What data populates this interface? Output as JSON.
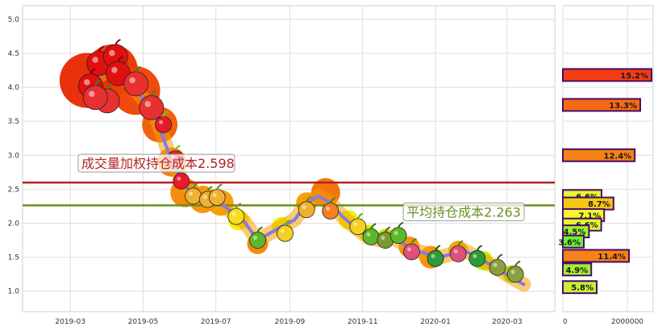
{
  "chart_data": {
    "type": "line",
    "title": "",
    "xlabel": "",
    "ylabel": "",
    "ylim": [
      0.7,
      5.2
    ],
    "yticks": [
      "1.0",
      "1.5",
      "2.0",
      "2.5",
      "3.0",
      "3.5",
      "4.0",
      "4.5",
      "5.0"
    ],
    "xticks": [
      "2019-03",
      "2019-05",
      "2019-07",
      "2019-09",
      "2019-11",
      "2020-01",
      "2020-03"
    ],
    "xlim": [
      "2019-01-20",
      "2020-04-10"
    ],
    "grid": true,
    "price_series": [
      {
        "date": "2019-03-20",
        "value": 4.1
      },
      {
        "date": "2019-04-01",
        "value": 4.25
      },
      {
        "date": "2019-04-15",
        "value": 4.15
      },
      {
        "date": "2019-04-25",
        "value": 3.95
      },
      {
        "date": "2019-05-05",
        "value": 3.75
      },
      {
        "date": "2019-05-12",
        "value": 3.55
      },
      {
        "date": "2019-05-20",
        "value": 3.15
      },
      {
        "date": "2019-05-27",
        "value": 2.85
      },
      {
        "date": "2019-06-05",
        "value": 2.55
      },
      {
        "date": "2019-06-15",
        "value": 2.4
      },
      {
        "date": "2019-06-25",
        "value": 2.35
      },
      {
        "date": "2019-07-05",
        "value": 2.3
      },
      {
        "date": "2019-07-15",
        "value": 2.15
      },
      {
        "date": "2019-07-25",
        "value": 2.02
      },
      {
        "date": "2019-08-05",
        "value": 1.75
      },
      {
        "date": "2019-08-15",
        "value": 1.85
      },
      {
        "date": "2019-08-25",
        "value": 1.95
      },
      {
        "date": "2019-09-05",
        "value": 2.05
      },
      {
        "date": "2019-09-15",
        "value": 2.3
      },
      {
        "date": "2019-09-25",
        "value": 2.4
      },
      {
        "date": "2019-10-05",
        "value": 2.3
      },
      {
        "date": "2019-10-15",
        "value": 2.1
      },
      {
        "date": "2019-10-25",
        "value": 1.95
      },
      {
        "date": "2019-11-05",
        "value": 1.8
      },
      {
        "date": "2019-11-15",
        "value": 1.75
      },
      {
        "date": "2019-11-25",
        "value": 1.8
      },
      {
        "date": "2019-12-05",
        "value": 1.7
      },
      {
        "date": "2019-12-15",
        "value": 1.6
      },
      {
        "date": "2019-12-25",
        "value": 1.55
      },
      {
        "date": "2020-01-05",
        "value": 1.5
      },
      {
        "date": "2020-01-15",
        "value": 1.55
      },
      {
        "date": "2020-01-25",
        "value": 1.6
      },
      {
        "date": "2020-02-05",
        "value": 1.5
      },
      {
        "date": "2020-02-15",
        "value": 1.4
      },
      {
        "date": "2020-02-25",
        "value": 1.3
      },
      {
        "date": "2020-03-05",
        "value": 1.2
      },
      {
        "date": "2020-03-15",
        "value": 1.1
      }
    ],
    "cost_bubbles": [
      {
        "date": "2019-03-15",
        "value": 4.1,
        "size": 34,
        "color": "#e82600"
      },
      {
        "date": "2019-04-05",
        "value": 4.25,
        "size": 32,
        "color": "#e83300"
      },
      {
        "date": "2019-04-25",
        "value": 3.95,
        "size": 30,
        "color": "#f04000"
      },
      {
        "date": "2019-05-15",
        "value": 3.45,
        "size": 22,
        "color": "#f05a00"
      },
      {
        "date": "2019-05-25",
        "value": 2.9,
        "size": 18,
        "color": "#f57700"
      },
      {
        "date": "2019-06-05",
        "value": 2.45,
        "size": 18,
        "color": "#f58500"
      },
      {
        "date": "2019-06-20",
        "value": 2.35,
        "size": 17,
        "color": "#f79000"
      },
      {
        "date": "2019-07-05",
        "value": 2.3,
        "size": 16,
        "color": "#f79a00"
      },
      {
        "date": "2019-07-20",
        "value": 2.05,
        "size": 13,
        "color": "#f5e800"
      },
      {
        "date": "2019-08-05",
        "value": 1.7,
        "size": 13,
        "color": "#f58200"
      },
      {
        "date": "2019-08-25",
        "value": 1.95,
        "size": 12,
        "color": "#f0f000"
      },
      {
        "date": "2019-09-15",
        "value": 2.3,
        "size": 13,
        "color": "#f79a00"
      },
      {
        "date": "2019-10-01",
        "value": 2.45,
        "size": 18,
        "color": "#f07000"
      },
      {
        "date": "2019-10-20",
        "value": 2.05,
        "size": 12,
        "color": "#e8f000"
      },
      {
        "date": "2019-11-05",
        "value": 1.85,
        "size": 11,
        "color": "#c8f000"
      },
      {
        "date": "2019-11-20",
        "value": 1.8,
        "size": 10,
        "color": "#b0f000"
      },
      {
        "date": "2019-12-10",
        "value": 1.65,
        "size": 13,
        "color": "#f58a00"
      },
      {
        "date": "2019-12-28",
        "value": 1.5,
        "size": 14,
        "color": "#f58a00"
      },
      {
        "date": "2020-01-20",
        "value": 1.6,
        "size": 12,
        "color": "#f5a000"
      },
      {
        "date": "2020-02-10",
        "value": 1.45,
        "size": 12,
        "color": "#b8f000"
      },
      {
        "date": "2020-03-05",
        "value": 1.25,
        "size": 11,
        "color": "#80f000"
      }
    ],
    "horizontal_lines": [
      {
        "name": "volume_weighted_cost",
        "value": 2.598,
        "color": "#b22222",
        "label": "成交量加权持仓成本2.598"
      },
      {
        "name": "average_cost",
        "value": 2.263,
        "color": "#6b8e23",
        "label": "平均持仓成本2.263"
      }
    ],
    "side_panel": {
      "type": "bar",
      "xlim": [
        0,
        2800000
      ],
      "xticks": [
        "0",
        "2000000"
      ],
      "bars": [
        {
          "price": 4.18,
          "value": 2750000,
          "label": "15.2%",
          "color": "#f53c14"
        },
        {
          "price": 3.74,
          "value": 2400000,
          "label": "13.3%",
          "color": "#f56a14"
        },
        {
          "price": 3.0,
          "value": 2230000,
          "label": "12.4%",
          "color": "#f58214"
        },
        {
          "price": 2.4,
          "value": 1200000,
          "label": "6.6%",
          "color": "#e6f532"
        },
        {
          "price": 2.29,
          "value": 1570000,
          "label": "8.7%",
          "color": "#f5c814"
        },
        {
          "price": 2.12,
          "value": 1280000,
          "label": "7.1%",
          "color": "#f5f532"
        },
        {
          "price": 1.98,
          "value": 1190000,
          "label": "6.6%",
          "color": "#e1f532"
        },
        {
          "price": 1.88,
          "value": 810000,
          "label": "4.5%",
          "color": "#a0f032"
        },
        {
          "price": 1.73,
          "value": 650000,
          "label": "3.6%",
          "color": "#6ef032"
        },
        {
          "price": 1.52,
          "value": 2050000,
          "label": "11.4%",
          "color": "#f58214"
        },
        {
          "price": 1.32,
          "value": 880000,
          "label": "4.9%",
          "color": "#a0f032"
        },
        {
          "price": 1.06,
          "value": 1050000,
          "label": "5.8%",
          "color": "#c8f032"
        }
      ]
    }
  }
}
